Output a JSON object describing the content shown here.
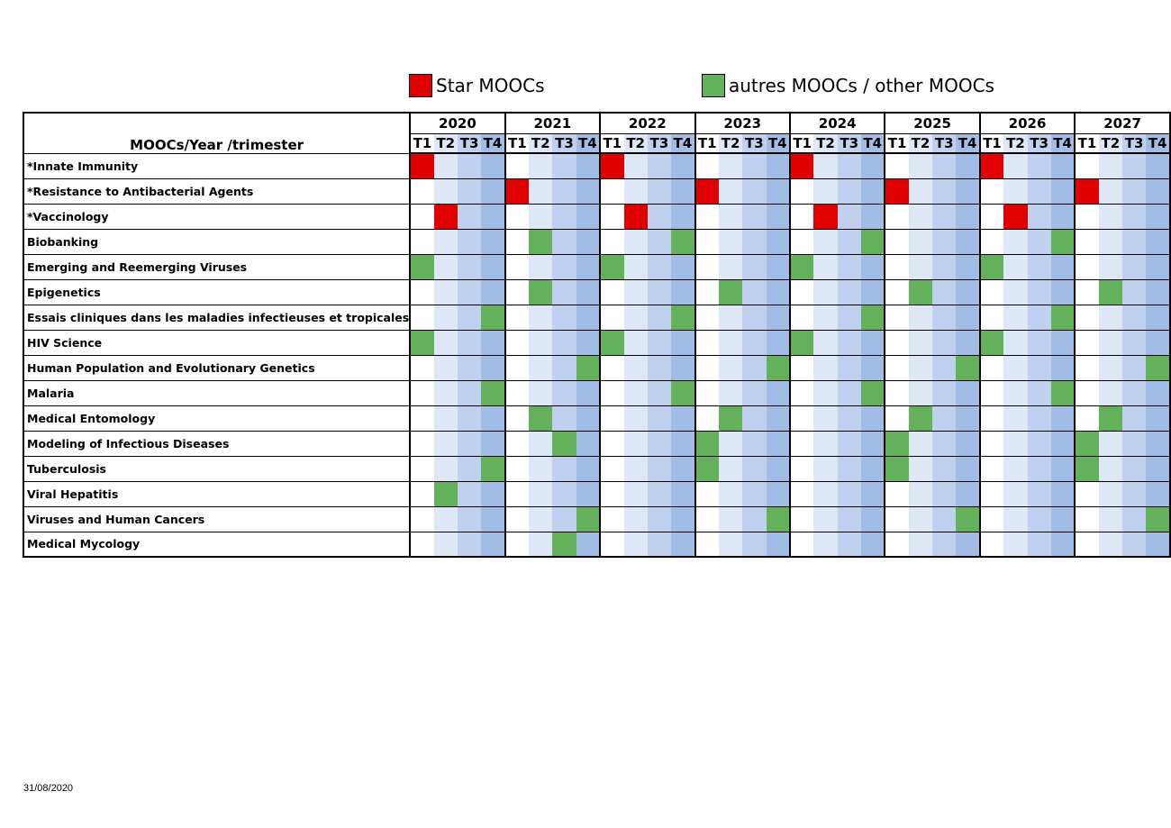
{
  "legend": {
    "star": {
      "label": "Star MOOCs",
      "color": "#e00000"
    },
    "other": {
      "label": "autres MOOCs / other MOOCs",
      "color": "#63b15a"
    }
  },
  "table": {
    "header_label": "MOOCs/Year /trimester",
    "years": [
      "2020",
      "2021",
      "2022",
      "2023",
      "2024",
      "2025",
      "2026",
      "2027"
    ],
    "quarters": [
      "T1",
      "T2",
      "T3",
      "T4"
    ],
    "quarter_colors": [
      "#ffffff",
      "#dde7f6",
      "#bfd1ee",
      "#a2bde5"
    ],
    "rows": [
      {
        "name": "*Innate Immunity",
        "type": "star",
        "marks": [
          "2020-T1",
          "2022-T1",
          "2024-T1",
          "2026-T1"
        ]
      },
      {
        "name": "*Resistance to Antibacterial Agents",
        "type": "star",
        "marks": [
          "2021-T1",
          "2023-T1",
          "2025-T1",
          "2027-T1"
        ]
      },
      {
        "name": "*Vaccinology",
        "type": "star",
        "marks": [
          "2020-T2",
          "2022-T2",
          "2024-T2",
          "2026-T2"
        ]
      },
      {
        "name": "Biobanking",
        "type": "other",
        "marks": [
          "2021-T2",
          "2022-T4",
          "2024-T4",
          "2026-T4"
        ]
      },
      {
        "name": "Emerging and Reemerging Viruses",
        "type": "other",
        "marks": [
          "2020-T1",
          "2022-T1",
          "2024-T1",
          "2026-T1"
        ]
      },
      {
        "name": "Epigenetics",
        "type": "other",
        "marks": [
          "2021-T2",
          "2023-T2",
          "2025-T2",
          "2027-T2"
        ]
      },
      {
        "name": "Essais cliniques dans les maladies infectieuses et tropicales",
        "type": "other",
        "marks": [
          "2020-T4",
          "2022-T4",
          "2024-T4",
          "2026-T4"
        ]
      },
      {
        "name": "HIV Science",
        "type": "other",
        "marks": [
          "2020-T1",
          "2022-T1",
          "2024-T1",
          "2026-T1"
        ]
      },
      {
        "name": "Human Population and Evolutionary Genetics",
        "type": "other",
        "marks": [
          "2021-T4",
          "2023-T4",
          "2025-T4",
          "2027-T4"
        ]
      },
      {
        "name": "Malaria",
        "type": "other",
        "marks": [
          "2020-T4",
          "2022-T4",
          "2024-T4",
          "2026-T4"
        ]
      },
      {
        "name": "Medical Entomology",
        "type": "other",
        "marks": [
          "2021-T2",
          "2023-T2",
          "2025-T2",
          "2027-T2"
        ]
      },
      {
        "name": "Modeling of Infectious Diseases",
        "type": "other",
        "marks": [
          "2021-T3",
          "2023-T1",
          "2025-T1",
          "2027-T1"
        ]
      },
      {
        "name": "Tuberculosis",
        "type": "other",
        "marks": [
          "2020-T4",
          "2023-T1",
          "2025-T1",
          "2027-T1"
        ]
      },
      {
        "name": "Viral Hepatitis",
        "type": "other",
        "marks": [
          "2020-T2"
        ]
      },
      {
        "name": "Viruses and Human Cancers",
        "type": "other",
        "marks": [
          "2021-T4",
          "2023-T4",
          "2025-T4",
          "2027-T4"
        ]
      },
      {
        "name": "Medical Mycology",
        "type": "other",
        "marks": [
          "2021-T3"
        ]
      }
    ]
  },
  "footer": {
    "date": "31/08/2020"
  }
}
